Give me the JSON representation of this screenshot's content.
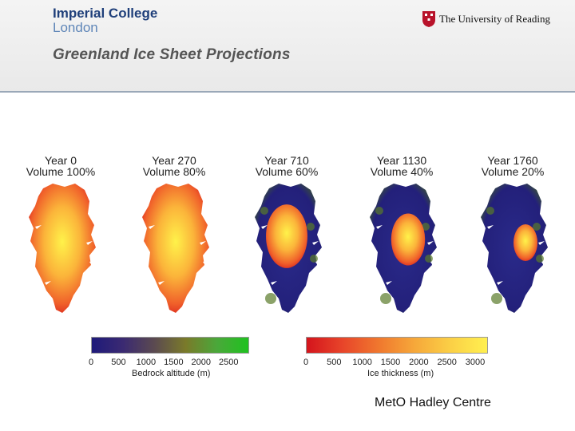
{
  "header": {
    "logo_left_line1": "Imperial College",
    "logo_left_line2": "London",
    "logo_right": "The University of Reading",
    "title": "Greenland Ice Sheet Projections"
  },
  "panels": [
    {
      "year": "Year 0",
      "volume": "Volume 100%",
      "volume_fraction": 1.0
    },
    {
      "year": "Year 270",
      "volume": "Volume 80%",
      "volume_fraction": 0.8
    },
    {
      "year": "Year 710",
      "volume": "Volume 60%",
      "volume_fraction": 0.6
    },
    {
      "year": "Year 1130",
      "volume": "Volume 40%",
      "volume_fraction": 0.4
    },
    {
      "year": "Year 1760",
      "volume": "Volume 20%",
      "volume_fraction": 0.2
    }
  ],
  "colorbars": {
    "bedrock": {
      "ticks": [
        "0",
        "500",
        "1000",
        "1500",
        "2000",
        "2500"
      ],
      "label": "Bedrock altitude (m)",
      "colors": [
        "#1e1a7a",
        "#3b2a72",
        "#5b4a50",
        "#7a7a2a",
        "#4aa83a",
        "#1fc21f"
      ]
    },
    "ice": {
      "ticks": [
        "0",
        "500",
        "1000",
        "1500",
        "2000",
        "2500",
        "3000"
      ],
      "label": "Ice thickness (m)",
      "colors": [
        "#d4141c",
        "#e8452a",
        "#f0782e",
        "#f6a83a",
        "#fbd046",
        "#fff050"
      ]
    }
  },
  "credit": "MetO Hadley Centre"
}
